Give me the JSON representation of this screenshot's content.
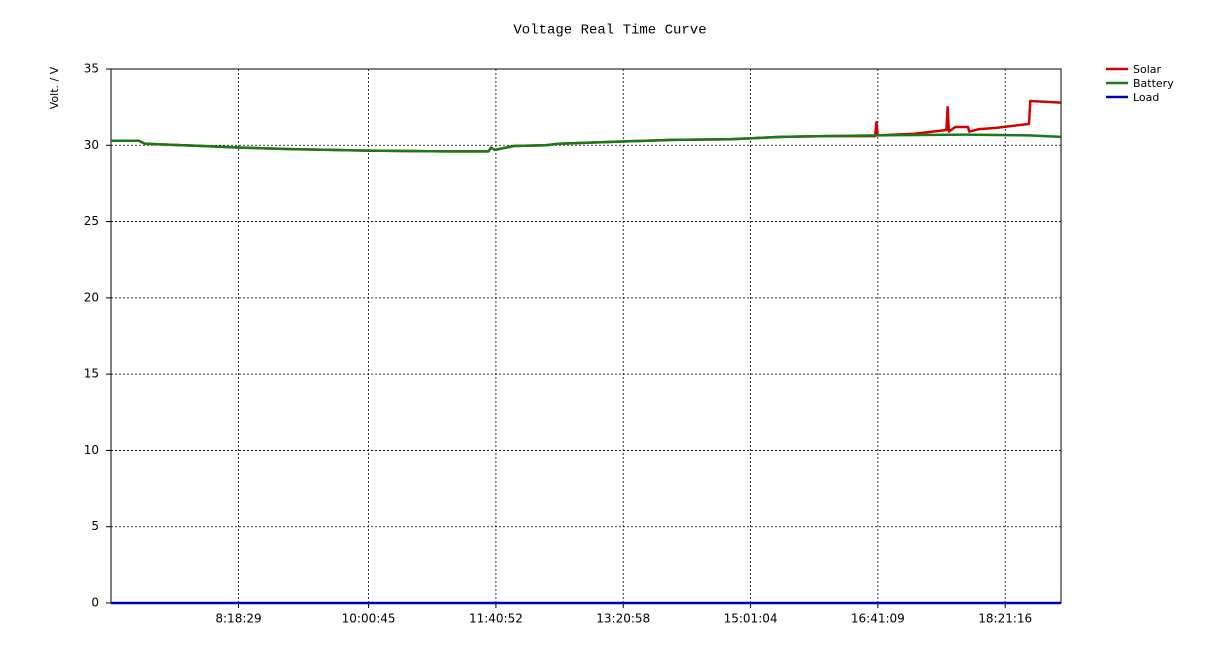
{
  "chart_data": {
    "type": "line",
    "title": "Voltage Real Time Curve",
    "y_label": "Volt. / V",
    "xlim": [
      "6:38:14",
      "19:05:08"
    ],
    "xticks": [
      "8:18:29",
      "10:00:45",
      "11:40:52",
      "13:20:58",
      "15:01:04",
      "16:41:09",
      "18:21:16"
    ],
    "ylim": [
      0,
      35
    ],
    "yticks": [
      0,
      5,
      10,
      15,
      20,
      25,
      30,
      35
    ],
    "grid": true,
    "legend": "top-right",
    "series": [
      {
        "name": "Solar",
        "color": "#d40000",
        "x": [
          "6:38:14",
          "7:00:00",
          "7:05:00",
          "7:50:00",
          "8:20:00",
          "9:00:00",
          "10:00:00",
          "11:00:00",
          "11:35:00",
          "11:37:00",
          "11:40:00",
          "11:55:00",
          "12:20:00",
          "12:30:00",
          "13:20:00",
          "14:00:00",
          "14:45:00",
          "15:00:00",
          "15:25:00",
          "16:00:00",
          "16:39:00",
          "16:40:00",
          "16:41:00",
          "17:10:00",
          "17:35:00",
          "17:36:00",
          "17:37:00",
          "17:42:00",
          "17:52:00",
          "17:53:00",
          "18:00:00",
          "18:15:00",
          "18:40:00",
          "18:41:00",
          "19:05:00"
        ],
        "values": [
          30.3,
          30.3,
          30.1,
          29.95,
          29.85,
          29.75,
          29.65,
          29.6,
          29.6,
          29.85,
          29.7,
          29.95,
          30.0,
          30.1,
          30.25,
          30.35,
          30.4,
          30.45,
          30.55,
          30.6,
          30.6,
          31.5,
          30.65,
          30.75,
          31.0,
          32.5,
          30.9,
          31.2,
          31.2,
          30.9,
          31.05,
          31.15,
          31.4,
          32.9,
          32.8
        ]
      },
      {
        "name": "Battery",
        "color": "#1a7a1a",
        "x": [
          "6:38:14",
          "7:00:00",
          "7:05:00",
          "7:50:00",
          "8:20:00",
          "9:00:00",
          "10:00:00",
          "11:00:00",
          "11:35:00",
          "11:37:00",
          "11:40:00",
          "11:55:00",
          "12:20:00",
          "12:30:00",
          "13:20:00",
          "14:00:00",
          "14:45:00",
          "15:00:00",
          "15:25:00",
          "16:00:00",
          "16:40:00",
          "17:50:00",
          "18:40:00",
          "19:05:00"
        ],
        "values": [
          30.3,
          30.3,
          30.1,
          29.95,
          29.85,
          29.75,
          29.65,
          29.6,
          29.6,
          29.85,
          29.7,
          29.95,
          30.0,
          30.1,
          30.25,
          30.35,
          30.4,
          30.45,
          30.55,
          30.6,
          30.65,
          30.7,
          30.65,
          30.55
        ]
      },
      {
        "name": "Load",
        "color": "#0000c0",
        "x": [
          "6:38:14",
          "19:05:00"
        ],
        "values": [
          0,
          0
        ]
      }
    ]
  }
}
